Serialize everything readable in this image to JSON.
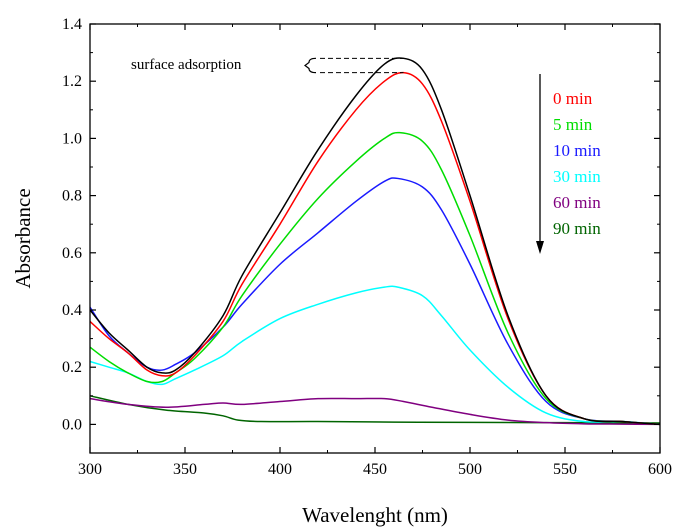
{
  "chart_data": {
    "type": "line",
    "xlabel": "Wavelenght (nm)",
    "ylabel": "Absorbance",
    "xlim": [
      300,
      600
    ],
    "ylim": [
      -0.1,
      1.4
    ],
    "xticks": [
      300,
      350,
      400,
      450,
      500,
      550,
      600
    ],
    "yticks": [
      0.0,
      0.2,
      0.4,
      0.6,
      0.8,
      1.0,
      1.2,
      1.4
    ],
    "ytick_labels": [
      "0.0",
      "0.2",
      "0.4",
      "0.6",
      "0.8",
      "1.0",
      "1.2",
      "1.4"
    ],
    "grid": false,
    "legend_position": "top-right",
    "annotation": "surface adsorption",
    "series": [
      {
        "color": "#000000",
        "x": [
          300,
          310,
          320,
          330,
          338,
          345,
          355,
          370,
          380,
          400,
          420,
          440,
          455,
          465,
          475,
          485,
          500,
          520,
          540,
          560,
          580,
          600
        ],
        "y": [
          0.4,
          0.32,
          0.26,
          0.2,
          0.18,
          0.19,
          0.25,
          0.38,
          0.52,
          0.74,
          0.96,
          1.15,
          1.26,
          1.28,
          1.24,
          1.1,
          0.8,
          0.38,
          0.1,
          0.02,
          0.01,
          0.0
        ]
      },
      {
        "name": "0 min",
        "color": "#ff0000",
        "x": [
          300,
          310,
          320,
          330,
          338,
          345,
          355,
          370,
          380,
          400,
          420,
          440,
          455,
          465,
          475,
          485,
          500,
          520,
          540,
          560,
          580,
          600
        ],
        "y": [
          0.36,
          0.3,
          0.25,
          0.19,
          0.17,
          0.18,
          0.24,
          0.36,
          0.49,
          0.7,
          0.92,
          1.1,
          1.2,
          1.23,
          1.19,
          1.06,
          0.78,
          0.37,
          0.1,
          0.02,
          0.01,
          0.0
        ]
      },
      {
        "name": "5 min",
        "color": "#00dd00",
        "x": [
          300,
          310,
          320,
          330,
          338,
          345,
          355,
          370,
          380,
          400,
          420,
          440,
          455,
          463,
          475,
          485,
          500,
          520,
          540,
          560,
          580,
          600
        ],
        "y": [
          0.27,
          0.22,
          0.18,
          0.15,
          0.15,
          0.18,
          0.23,
          0.34,
          0.45,
          0.63,
          0.79,
          0.92,
          1.0,
          1.02,
          0.99,
          0.89,
          0.66,
          0.32,
          0.09,
          0.02,
          0.01,
          0.0
        ]
      },
      {
        "name": "10 min",
        "color": "#1a1aff",
        "x": [
          300,
          310,
          320,
          330,
          338,
          345,
          355,
          370,
          380,
          400,
          420,
          440,
          455,
          462,
          475,
          485,
          500,
          520,
          540,
          560,
          580,
          600
        ],
        "y": [
          0.41,
          0.31,
          0.25,
          0.2,
          0.19,
          0.21,
          0.25,
          0.34,
          0.42,
          0.56,
          0.67,
          0.78,
          0.85,
          0.86,
          0.83,
          0.75,
          0.56,
          0.28,
          0.08,
          0.02,
          0.01,
          0.0
        ]
      },
      {
        "name": "30 min",
        "color": "#00ffff",
        "x": [
          300,
          310,
          320,
          330,
          338,
          345,
          355,
          370,
          380,
          400,
          420,
          440,
          455,
          462,
          475,
          485,
          500,
          520,
          540,
          560,
          580,
          600
        ],
        "y": [
          0.22,
          0.2,
          0.18,
          0.15,
          0.14,
          0.16,
          0.19,
          0.24,
          0.29,
          0.37,
          0.42,
          0.46,
          0.48,
          0.48,
          0.45,
          0.38,
          0.26,
          0.13,
          0.04,
          0.01,
          0.01,
          0.0
        ]
      },
      {
        "name": "60 min",
        "color": "#800080",
        "x": [
          300,
          320,
          340,
          360,
          370,
          380,
          400,
          420,
          440,
          455,
          465,
          480,
          500,
          520,
          540,
          560,
          580,
          600
        ],
        "y": [
          0.09,
          0.07,
          0.06,
          0.07,
          0.075,
          0.07,
          0.08,
          0.09,
          0.09,
          0.09,
          0.08,
          0.06,
          0.035,
          0.015,
          0.006,
          0.002,
          0.001,
          0.0
        ]
      },
      {
        "name": "90 min",
        "color": "#006400",
        "x": [
          300,
          320,
          340,
          360,
          370,
          378,
          390,
          420,
          460,
          500,
          550,
          600
        ],
        "y": [
          0.1,
          0.07,
          0.05,
          0.04,
          0.03,
          0.015,
          0.01,
          0.01,
          0.008,
          0.007,
          0.006,
          0.005
        ]
      }
    ]
  }
}
